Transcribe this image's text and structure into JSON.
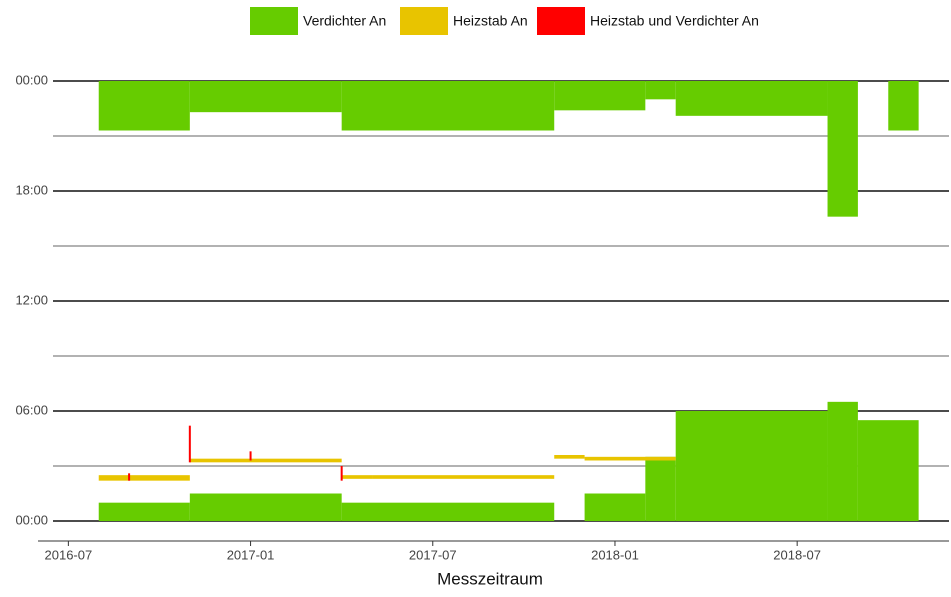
{
  "chart_data": {
    "type": "range-bar",
    "xlabel": "Messzeitraum",
    "xlim": [
      "2016-06",
      "2018-12"
    ],
    "xticks": [
      "2016-07",
      "2017-01",
      "2017-07",
      "2018-01",
      "2018-07"
    ],
    "ylim": [
      0,
      24
    ],
    "yticks": [
      {
        "value": 0,
        "label": "00:00"
      },
      {
        "value": 6,
        "label": "06:00"
      },
      {
        "value": 12,
        "label": "12:00"
      },
      {
        "value": 18,
        "label": "18:00"
      },
      {
        "value": 24,
        "label": "00:00"
      }
    ],
    "yminor": [
      3,
      9,
      15,
      21
    ],
    "grid": true,
    "legend": "top",
    "series": [
      {
        "name": "Verdichter An",
        "color": "#66cc00",
        "x_start": [
          "2016-08",
          "2016-11",
          "2017-04",
          "2017-11",
          "2018-02",
          "2018-03",
          "2018-08",
          "2018-10",
          "2016-08",
          "2016-11",
          "2017-04",
          "2017-12",
          "2018-02",
          "2018-03",
          "2018-08",
          "2018-09"
        ],
        "x_end": [
          "2016-11",
          "2017-04",
          "2017-11",
          "2018-02",
          "2018-03",
          "2018-08",
          "2018-09",
          "2018-11",
          "2016-11",
          "2017-04",
          "2017-11",
          "2018-02",
          "2018-03",
          "2018-08",
          "2018-09",
          "2018-11"
        ],
        "low": [
          21.3,
          22.3,
          21.3,
          22.4,
          23,
          22.1,
          16.6,
          21.3,
          0,
          0,
          0,
          0,
          0,
          0,
          0,
          0
        ],
        "high": [
          24,
          24,
          24,
          24,
          24,
          24,
          24,
          24,
          1,
          1.5,
          1,
          1.5,
          3.5,
          6,
          6.5,
          5.5
        ]
      },
      {
        "name": "Heizstab An",
        "color": "#e8c400",
        "x_start": [
          "2016-08",
          "2016-11",
          "2017-04",
          "2017-05",
          "2017-11",
          "2017-12"
        ],
        "x_end": [
          "2016-11",
          "2017-04",
          "2017-05",
          "2017-11",
          "2017-12",
          "2018-03"
        ],
        "low": [
          2.2,
          3.2,
          2.3,
          2.3,
          3.4,
          3.3
        ],
        "high": [
          2.5,
          3.4,
          2.5,
          2.5,
          3.6,
          3.5
        ]
      },
      {
        "name": "Heizstab und Verdichter An",
        "color": "#ff0000",
        "x_start": [
          "2016-09",
          "2016-11",
          "2017-01",
          "2017-04"
        ],
        "x_end": [
          "2016-09",
          "2016-11",
          "2017-01",
          "2017-04"
        ],
        "low": [
          2.2,
          3.2,
          3.3,
          2.2
        ],
        "high": [
          2.6,
          5.2,
          3.8,
          3.0
        ]
      }
    ]
  }
}
